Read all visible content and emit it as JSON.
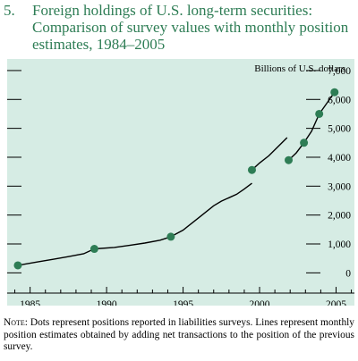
{
  "figure": {
    "number": "5.",
    "title": "Foreign holdings of U.S. long-term securities: Comparison of survey values with monthly position estimates, 1984–2005"
  },
  "note": {
    "lead": "Note:",
    "text": "Dots represent positions reported in liabilities surveys. Lines represent monthly position estimates obtained by adding net transactions to the position of the previous survey."
  },
  "colors": {
    "background": "#d6ece4",
    "dot": "#2e7d55",
    "line": "#000000",
    "title": "#2e7d55"
  },
  "chart_data": {
    "type": "scatter",
    "units_label": "Billions of U.S. dollars",
    "xlim": [
      1983.5,
      2006.2
    ],
    "ylim": [
      -700,
      7400
    ],
    "x_ticks": [
      1985,
      1990,
      1995,
      2000,
      2005
    ],
    "y_ticks": [
      0,
      1000,
      2000,
      3000,
      4000,
      5000,
      6000,
      7000
    ],
    "y_tick_labels": [
      "0",
      "1,000",
      "2,000",
      "3,000",
      "4,000",
      "5,000",
      "6,000",
      "7,000"
    ],
    "grid": false,
    "survey_points": [
      {
        "x": 1984.2,
        "y": 260
      },
      {
        "x": 1989.2,
        "y": 830
      },
      {
        "x": 1994.2,
        "y": 1250
      },
      {
        "x": 1999.5,
        "y": 3560
      },
      {
        "x": 2001.9,
        "y": 3900
      },
      {
        "x": 2002.9,
        "y": 4500
      },
      {
        "x": 2003.9,
        "y": 5500
      },
      {
        "x": 2004.9,
        "y": 6250
      }
    ],
    "estimate_lines": [
      [
        [
          1984.2,
          260
        ],
        [
          1985.5,
          380
        ],
        [
          1986.5,
          470
        ],
        [
          1987.5,
          560
        ],
        [
          1988.5,
          660
        ],
        [
          1989.2,
          830
        ]
      ],
      [
        [
          1989.2,
          830
        ],
        [
          1990.5,
          880
        ],
        [
          1991.5,
          950
        ],
        [
          1992.5,
          1030
        ],
        [
          1993.5,
          1130
        ],
        [
          1994.2,
          1250
        ]
      ],
      [
        [
          1994.2,
          1250
        ],
        [
          1995,
          1480
        ],
        [
          1996,
          1900
        ],
        [
          1997,
          2320
        ],
        [
          1997.5,
          2480
        ],
        [
          1998,
          2600
        ],
        [
          1998.5,
          2720
        ],
        [
          1999,
          2900
        ],
        [
          1999.5,
          3100
        ]
      ],
      [
        [
          1999.5,
          3560
        ],
        [
          2000,
          3800
        ],
        [
          2000.6,
          4050
        ],
        [
          2001.2,
          4360
        ],
        [
          2001.8,
          4680
        ]
      ],
      [
        [
          2001.9,
          3900
        ],
        [
          2002.4,
          4150
        ],
        [
          2002.9,
          4500
        ]
      ],
      [
        [
          2002.9,
          4500
        ],
        [
          2003.4,
          4900
        ],
        [
          2003.9,
          5500
        ]
      ],
      [
        [
          2003.9,
          5500
        ],
        [
          2004.4,
          5870
        ],
        [
          2004.9,
          6250
        ]
      ]
    ]
  }
}
